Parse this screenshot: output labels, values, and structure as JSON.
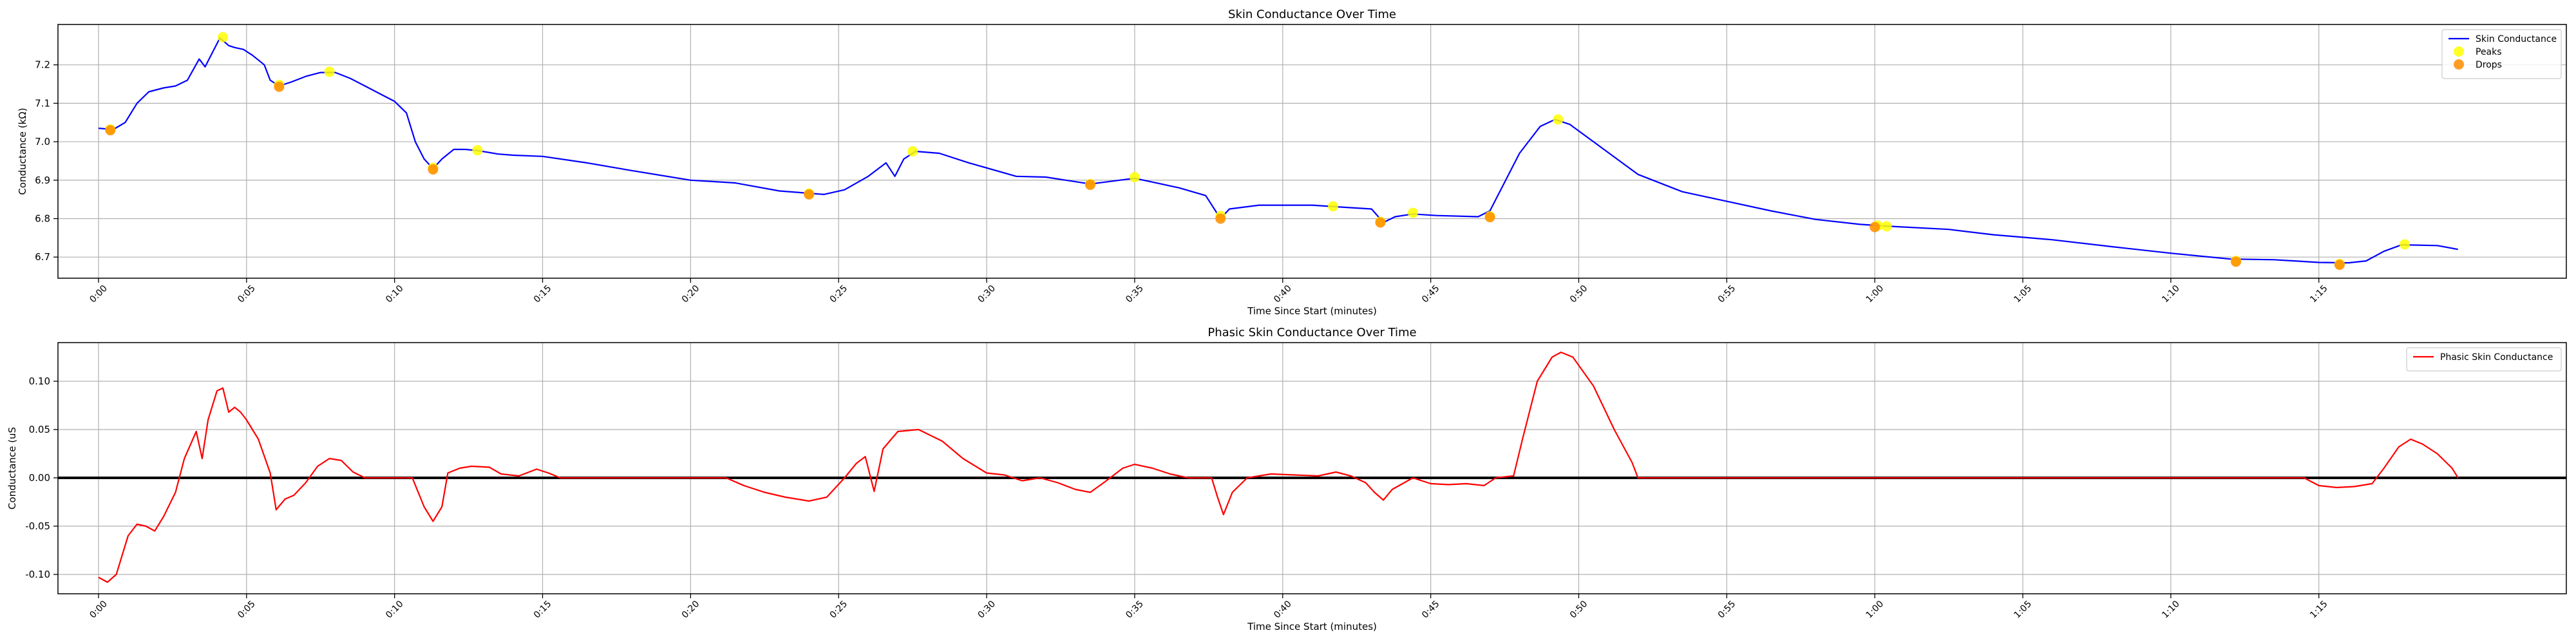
{
  "chart_data": [
    {
      "type": "line",
      "title": "Skin Conductance Over Time",
      "xlabel": "Time Since Start (minutes)",
      "ylabel": "Conductance (kΩ)",
      "xlim": [
        -0.0137,
        0.8336
      ],
      "ylim": [
        6.645,
        7.305
      ],
      "x_ticks": [
        0.0,
        0.05,
        0.1,
        0.15,
        0.2,
        0.25,
        0.3,
        0.35,
        0.4,
        0.45,
        0.5,
        0.55,
        0.6,
        0.65,
        0.7,
        0.75
      ],
      "x_tick_labels": [
        "0:00",
        "0:05",
        "0:10",
        "0:15",
        "0:20",
        "0:25",
        "0:30",
        "0:35",
        "0:40",
        "0:45",
        "0:50",
        "0:55",
        "1:00",
        "1:05",
        "1:10",
        "1:15"
      ],
      "y_ticks": [
        6.7,
        6.8,
        6.9,
        7.0,
        7.1,
        7.2
      ],
      "y_tick_labels": [
        "6.7",
        "6.8",
        "6.9",
        "7.0",
        "7.1",
        "7.2"
      ],
      "grid": true,
      "legend_position": "top-right",
      "series": [
        {
          "name": "Skin Conductance",
          "kind": "line",
          "color": "#0000ff",
          "points": [
            [
              0.0,
              7.035
            ],
            [
              0.005,
              7.032
            ],
            [
              0.009,
              7.05
            ],
            [
              0.013,
              7.1
            ],
            [
              0.017,
              7.13
            ],
            [
              0.022,
              7.14
            ],
            [
              0.026,
              7.145
            ],
            [
              0.03,
              7.16
            ],
            [
              0.034,
              7.215
            ],
            [
              0.036,
              7.195
            ],
            [
              0.038,
              7.225
            ],
            [
              0.041,
              7.27
            ],
            [
              0.044,
              7.25
            ],
            [
              0.046,
              7.245
            ],
            [
              0.049,
              7.24
            ],
            [
              0.052,
              7.225
            ],
            [
              0.056,
              7.2
            ],
            [
              0.058,
              7.16
            ],
            [
              0.061,
              7.145
            ],
            [
              0.065,
              7.155
            ],
            [
              0.07,
              7.17
            ],
            [
              0.075,
              7.18
            ],
            [
              0.08,
              7.18
            ],
            [
              0.085,
              7.165
            ],
            [
              0.09,
              7.145
            ],
            [
              0.095,
              7.125
            ],
            [
              0.1,
              7.105
            ],
            [
              0.104,
              7.075
            ],
            [
              0.107,
              7.0
            ],
            [
              0.11,
              6.955
            ],
            [
              0.113,
              6.93
            ],
            [
              0.116,
              6.955
            ],
            [
              0.12,
              6.98
            ],
            [
              0.124,
              6.98
            ],
            [
              0.128,
              6.977
            ],
            [
              0.135,
              6.968
            ],
            [
              0.14,
              6.965
            ],
            [
              0.15,
              6.962
            ],
            [
              0.165,
              6.945
            ],
            [
              0.18,
              6.925
            ],
            [
              0.2,
              6.9
            ],
            [
              0.215,
              6.893
            ],
            [
              0.23,
              6.872
            ],
            [
              0.245,
              6.863
            ],
            [
              0.252,
              6.875
            ],
            [
              0.26,
              6.91
            ],
            [
              0.266,
              6.945
            ],
            [
              0.269,
              6.91
            ],
            [
              0.272,
              6.955
            ],
            [
              0.276,
              6.975
            ],
            [
              0.284,
              6.97
            ],
            [
              0.294,
              6.945
            ],
            [
              0.31,
              6.91
            ],
            [
              0.32,
              6.908
            ],
            [
              0.335,
              6.89
            ],
            [
              0.35,
              6.905
            ],
            [
              0.365,
              6.88
            ],
            [
              0.374,
              6.86
            ],
            [
              0.379,
              6.8
            ],
            [
              0.382,
              6.825
            ],
            [
              0.392,
              6.835
            ],
            [
              0.41,
              6.835
            ],
            [
              0.42,
              6.83
            ],
            [
              0.43,
              6.825
            ],
            [
              0.434,
              6.79
            ],
            [
              0.438,
              6.805
            ],
            [
              0.444,
              6.812
            ],
            [
              0.452,
              6.808
            ],
            [
              0.466,
              6.805
            ],
            [
              0.47,
              6.82
            ],
            [
              0.474,
              6.88
            ],
            [
              0.48,
              6.97
            ],
            [
              0.487,
              7.04
            ],
            [
              0.492,
              7.058
            ],
            [
              0.497,
              7.045
            ],
            [
              0.505,
              7.0
            ],
            [
              0.52,
              6.915
            ],
            [
              0.535,
              6.87
            ],
            [
              0.55,
              6.845
            ],
            [
              0.565,
              6.82
            ],
            [
              0.58,
              6.798
            ],
            [
              0.595,
              6.785
            ],
            [
              0.605,
              6.78
            ],
            [
              0.625,
              6.772
            ],
            [
              0.64,
              6.758
            ],
            [
              0.66,
              6.745
            ],
            [
              0.68,
              6.727
            ],
            [
              0.7,
              6.71
            ],
            [
              0.72,
              6.695
            ],
            [
              0.735,
              6.693
            ],
            [
              0.75,
              6.686
            ],
            [
              0.76,
              6.685
            ],
            [
              0.766,
              6.69
            ],
            [
              0.772,
              6.715
            ],
            [
              0.778,
              6.732
            ],
            [
              0.79,
              6.73
            ],
            [
              0.797,
              6.72
            ]
          ]
        },
        {
          "name": "Peaks",
          "kind": "scatter",
          "color": "#ffff00",
          "x": [
            0.004,
            0.042,
            0.061,
            0.078,
            0.113,
            0.128,
            0.24,
            0.275,
            0.335,
            0.35,
            0.379,
            0.417,
            0.433,
            0.444,
            0.47,
            0.493,
            0.601,
            0.604,
            0.722,
            0.757,
            0.779
          ],
          "y": [
            7.032,
            7.272,
            7.148,
            7.182,
            6.932,
            6.978,
            6.865,
            6.975,
            6.89,
            6.908,
            6.807,
            6.832,
            6.792,
            6.815,
            6.806,
            7.058,
            6.782,
            6.78,
            6.69,
            6.682,
            6.733
          ]
        },
        {
          "name": "Drops",
          "kind": "scatter",
          "color": "#ff8c00",
          "x": [
            0.004,
            0.061,
            0.113,
            0.24,
            0.335,
            0.379,
            0.433,
            0.47,
            0.6,
            0.722,
            0.757
          ],
          "y": [
            7.03,
            7.143,
            6.928,
            6.863,
            6.888,
            6.8,
            6.79,
            6.804,
            6.778,
            6.688,
            6.68
          ]
        }
      ]
    },
    {
      "type": "line",
      "title": "Phasic Skin Conductance Over Time",
      "xlabel": "Time Since Start (minutes)",
      "ylabel": "Conductance (uS",
      "xlim": [
        -0.0137,
        0.8336
      ],
      "ylim": [
        -0.12,
        0.14
      ],
      "x_ticks": [
        0.0,
        0.05,
        0.1,
        0.15,
        0.2,
        0.25,
        0.3,
        0.35,
        0.4,
        0.45,
        0.5,
        0.55,
        0.6,
        0.65,
        0.7,
        0.75
      ],
      "x_tick_labels": [
        "0:00",
        "0:05",
        "0:10",
        "0:15",
        "0:20",
        "0:25",
        "0:30",
        "0:35",
        "0:40",
        "0:45",
        "0:50",
        "0:55",
        "1:00",
        "1:05",
        "1:10",
        "1:15"
      ],
      "y_ticks": [
        -0.1,
        -0.05,
        0.0,
        0.05,
        0.1
      ],
      "y_tick_labels": [
        "-0.10",
        "-0.05",
        "0.00",
        "0.05",
        "0.10"
      ],
      "grid": true,
      "zero_line": true,
      "legend_position": "top-right",
      "series": [
        {
          "name": "Phasic Skin Conductance",
          "kind": "line",
          "color": "#ff0000",
          "points": [
            [
              0.0,
              -0.103
            ],
            [
              0.003,
              -0.108
            ],
            [
              0.006,
              -0.1
            ],
            [
              0.01,
              -0.06
            ],
            [
              0.013,
              -0.048
            ],
            [
              0.016,
              -0.05
            ],
            [
              0.019,
              -0.055
            ],
            [
              0.022,
              -0.04
            ],
            [
              0.026,
              -0.015
            ],
            [
              0.029,
              0.02
            ],
            [
              0.033,
              0.048
            ],
            [
              0.035,
              0.02
            ],
            [
              0.037,
              0.06
            ],
            [
              0.04,
              0.09
            ],
            [
              0.042,
              0.093
            ],
            [
              0.044,
              0.068
            ],
            [
              0.046,
              0.073
            ],
            [
              0.048,
              0.068
            ],
            [
              0.05,
              0.06
            ],
            [
              0.054,
              0.04
            ],
            [
              0.058,
              0.005
            ],
            [
              0.06,
              -0.033
            ],
            [
              0.063,
              -0.022
            ],
            [
              0.066,
              -0.018
            ],
            [
              0.07,
              -0.005
            ],
            [
              0.074,
              0.012
            ],
            [
              0.078,
              0.02
            ],
            [
              0.082,
              0.018
            ],
            [
              0.086,
              0.006
            ],
            [
              0.09,
              0.0
            ],
            [
              0.106,
              0.0
            ],
            [
              0.11,
              -0.03
            ],
            [
              0.113,
              -0.045
            ],
            [
              0.116,
              -0.03
            ],
            [
              0.118,
              0.005
            ],
            [
              0.122,
              0.01
            ],
            [
              0.126,
              0.012
            ],
            [
              0.132,
              0.011
            ],
            [
              0.136,
              0.004
            ],
            [
              0.142,
              0.002
            ],
            [
              0.148,
              0.009
            ],
            [
              0.152,
              0.005
            ],
            [
              0.156,
              0.0
            ],
            [
              0.212,
              0.0
            ],
            [
              0.218,
              -0.008
            ],
            [
              0.225,
              -0.015
            ],
            [
              0.232,
              -0.02
            ],
            [
              0.24,
              -0.024
            ],
            [
              0.246,
              -0.02
            ],
            [
              0.252,
              0.0
            ],
            [
              0.256,
              0.015
            ],
            [
              0.259,
              0.022
            ],
            [
              0.262,
              -0.014
            ],
            [
              0.265,
              0.03
            ],
            [
              0.27,
              0.048
            ],
            [
              0.277,
              0.05
            ],
            [
              0.285,
              0.038
            ],
            [
              0.292,
              0.02
            ],
            [
              0.3,
              0.005
            ],
            [
              0.306,
              0.003
            ],
            [
              0.312,
              -0.003
            ],
            [
              0.318,
              0.0
            ],
            [
              0.324,
              -0.005
            ],
            [
              0.33,
              -0.012
            ],
            [
              0.335,
              -0.015
            ],
            [
              0.34,
              -0.004
            ],
            [
              0.346,
              0.01
            ],
            [
              0.35,
              0.014
            ],
            [
              0.356,
              0.01
            ],
            [
              0.362,
              0.004
            ],
            [
              0.368,
              0.0
            ],
            [
              0.376,
              0.0
            ],
            [
              0.378,
              -0.02
            ],
            [
              0.38,
              -0.038
            ],
            [
              0.383,
              -0.015
            ],
            [
              0.388,
              0.0
            ],
            [
              0.396,
              0.004
            ],
            [
              0.404,
              0.003
            ],
            [
              0.412,
              0.002
            ],
            [
              0.418,
              0.006
            ],
            [
              0.423,
              0.002
            ],
            [
              0.428,
              -0.005
            ],
            [
              0.431,
              -0.015
            ],
            [
              0.434,
              -0.023
            ],
            [
              0.437,
              -0.012
            ],
            [
              0.444,
              0.0
            ],
            [
              0.45,
              -0.006
            ],
            [
              0.456,
              -0.007
            ],
            [
              0.462,
              -0.006
            ],
            [
              0.468,
              -0.008
            ],
            [
              0.472,
              0.0
            ],
            [
              0.478,
              0.002
            ],
            [
              0.481,
              0.04
            ],
            [
              0.486,
              0.1
            ],
            [
              0.491,
              0.125
            ],
            [
              0.494,
              0.13
            ],
            [
              0.498,
              0.125
            ],
            [
              0.505,
              0.095
            ],
            [
              0.512,
              0.05
            ],
            [
              0.518,
              0.016
            ],
            [
              0.52,
              0.0
            ],
            [
              0.745,
              0.0
            ],
            [
              0.75,
              -0.008
            ],
            [
              0.756,
              -0.01
            ],
            [
              0.762,
              -0.009
            ],
            [
              0.768,
              -0.006
            ],
            [
              0.772,
              0.01
            ],
            [
              0.777,
              0.032
            ],
            [
              0.781,
              0.04
            ],
            [
              0.785,
              0.035
            ],
            [
              0.79,
              0.025
            ],
            [
              0.795,
              0.01
            ],
            [
              0.797,
              0.0
            ]
          ]
        }
      ]
    }
  ]
}
